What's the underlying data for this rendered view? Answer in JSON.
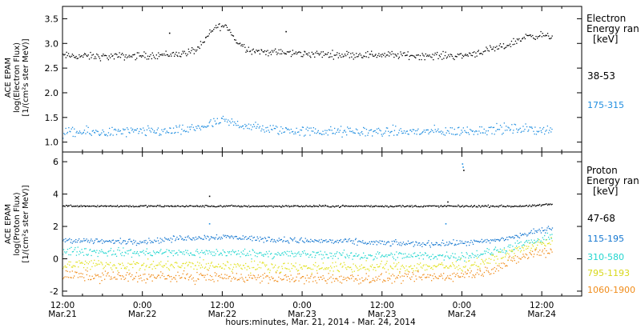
{
  "chart_data": [
    {
      "type": "scatter",
      "ylabel_lines": [
        "ACE EPAM",
        "log(Electron Flux)",
        "[1/(cm²s ster MeV)]"
      ],
      "ylim": [
        0.8,
        3.75
      ],
      "yticks": [
        1.0,
        1.5,
        2.0,
        2.5,
        3.0,
        3.5
      ],
      "ytick_labels": [
        "1.0",
        "1.5",
        "2.0",
        "2.5",
        "3.0",
        "3.5"
      ],
      "legend": {
        "title_lines": [
          "Electron",
          "Energy ran",
          "[keV]"
        ],
        "placement": "right"
      },
      "series": [
        {
          "name": "38-53",
          "color": "#000000",
          "noise": 0.05,
          "x": [
            0,
            6,
            12,
            18,
            20,
            21,
            22,
            23,
            24,
            25,
            26,
            28,
            30,
            36,
            42,
            48,
            54,
            60,
            66,
            68,
            70,
            72,
            73.5
          ],
          "y": [
            2.76,
            2.74,
            2.76,
            2.8,
            2.88,
            3.0,
            3.2,
            3.35,
            3.36,
            3.3,
            3.05,
            2.88,
            2.84,
            2.8,
            2.78,
            2.78,
            2.76,
            2.76,
            2.93,
            3.05,
            3.17,
            3.17,
            3.13
          ]
        },
        {
          "name": "175-315",
          "color": "#1f8ee0",
          "noise": 0.07,
          "x": [
            0,
            6,
            12,
            18,
            21,
            24,
            27,
            30,
            36,
            42,
            48,
            54,
            60,
            66,
            72,
            73.5
          ],
          "y": [
            1.2,
            1.21,
            1.22,
            1.24,
            1.33,
            1.43,
            1.36,
            1.28,
            1.23,
            1.22,
            1.22,
            1.22,
            1.23,
            1.28,
            1.26,
            1.25
          ]
        }
      ]
    },
    {
      "type": "scatter",
      "ylabel_lines": [
        "ACE EPAM",
        "log(Proton Flux)",
        "[1/(cm²s ster MeV)]"
      ],
      "ylim": [
        -2.3,
        6.6
      ],
      "yticks": [
        -2,
        0,
        2,
        4,
        6
      ],
      "ytick_labels": [
        "-2",
        "0",
        "2",
        "4",
        "6"
      ],
      "legend": {
        "title_lines": [
          "Proton",
          "Energy ran",
          "[keV]"
        ],
        "placement": "right"
      },
      "series": [
        {
          "name": "47-68",
          "color": "#000000",
          "noise": 0.04,
          "x": [
            0,
            12,
            24,
            36,
            48,
            60,
            66,
            70,
            72,
            73.5
          ],
          "y": [
            3.3,
            3.28,
            3.28,
            3.28,
            3.28,
            3.28,
            3.28,
            3.28,
            3.35,
            3.4
          ]
        },
        {
          "name": "115-195",
          "color": "#1577d0",
          "noise": 0.12,
          "x": [
            0,
            6,
            12,
            18,
            24,
            30,
            36,
            42,
            48,
            54,
            60,
            64,
            68,
            72,
            73.5
          ],
          "y": [
            1.2,
            1.1,
            1.1,
            1.3,
            1.4,
            1.25,
            1.15,
            1.1,
            1.0,
            0.95,
            1.0,
            1.1,
            1.4,
            1.8,
            1.95
          ]
        },
        {
          "name": "310-580",
          "color": "#22d6cf",
          "noise": 0.18,
          "x": [
            0,
            12,
            24,
            36,
            48,
            60,
            64,
            68,
            72,
            73.5
          ],
          "y": [
            0.5,
            0.4,
            0.4,
            0.3,
            0.2,
            0.2,
            0.4,
            0.8,
            1.2,
            1.35
          ]
        },
        {
          "name": "795-1193",
          "color": "#e1e11e",
          "noise": 0.22,
          "x": [
            0,
            12,
            24,
            36,
            48,
            60,
            64,
            68,
            72,
            73.5
          ],
          "y": [
            -0.3,
            -0.4,
            -0.4,
            -0.5,
            -0.5,
            -0.4,
            -0.1,
            0.5,
            1.0,
            1.1
          ]
        },
        {
          "name": "1060-1900",
          "color": "#f08c1a",
          "noise": 0.22,
          "x": [
            0,
            12,
            24,
            36,
            48,
            60,
            64,
            68,
            72,
            73.5
          ],
          "y": [
            -1.0,
            -1.1,
            -1.1,
            -1.2,
            -1.2,
            -1.0,
            -0.7,
            0.0,
            0.5,
            0.55
          ]
        }
      ]
    }
  ],
  "xaxis": {
    "xlim": [
      0,
      78
    ],
    "ticks": [
      0,
      12,
      24,
      36,
      48,
      60,
      72
    ],
    "tick_labels": [
      {
        "time": "12:00",
        "date": "Mar.21"
      },
      {
        "time": "0:00",
        "date": "Mar.22"
      },
      {
        "time": "12:00",
        "date": "Mar.22"
      },
      {
        "time": "0:00",
        "date": "Mar.23"
      },
      {
        "time": "12:00",
        "date": "Mar.23"
      },
      {
        "time": "0:00",
        "date": "Mar.24"
      },
      {
        "time": "12:00",
        "date": "Mar.24"
      }
    ],
    "label": "hours:minutes, Mar. 21, 2014 - Mar. 24, 2014"
  },
  "outliers": [
    {
      "panel": 1,
      "x": 60,
      "y": 5.9,
      "color": "#1f8ee0"
    },
    {
      "panel": 1,
      "x": 60.1,
      "y": 5.7,
      "color": "#1f8ee0"
    },
    {
      "panel": 1,
      "x": 60.2,
      "y": 5.5,
      "color": "#000000"
    },
    {
      "panel": 1,
      "x": 22,
      "y": 3.9,
      "color": "#000000"
    },
    {
      "panel": 1,
      "x": 22,
      "y": 2.2,
      "color": "#1f8ee0"
    },
    {
      "panel": 1,
      "x": 57.5,
      "y": 2.2,
      "color": "#1f8ee0"
    },
    {
      "panel": 1,
      "x": 57.8,
      "y": 3.55,
      "color": "#000000"
    },
    {
      "panel": 0,
      "x": 16,
      "y": 3.22,
      "color": "#000000"
    },
    {
      "panel": 0,
      "x": 33.5,
      "y": 3.25,
      "color": "#000000"
    }
  ]
}
